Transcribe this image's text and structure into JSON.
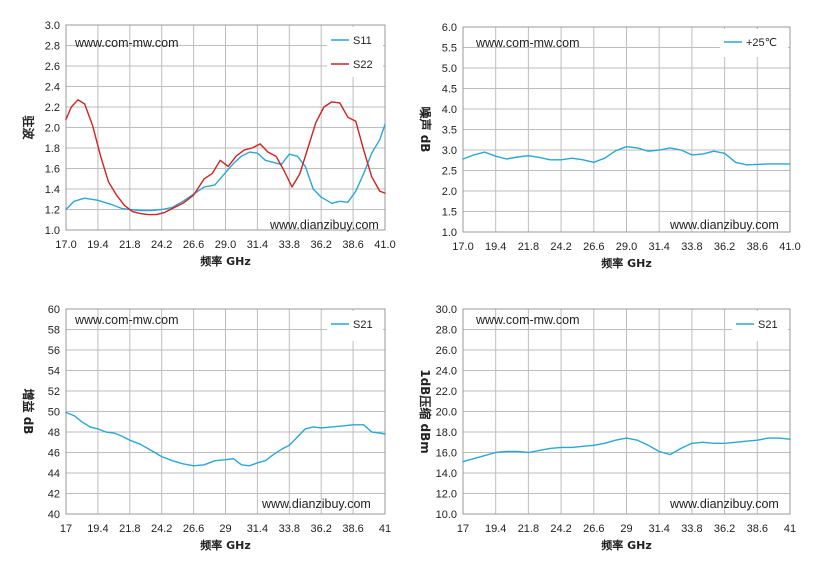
{
  "chart_data": [
    {
      "type": "line",
      "ylabel": "驻波",
      "xlabel": "频率 GHz",
      "xlim": [
        17.0,
        41.0
      ],
      "ylim": [
        1.0,
        3.0
      ],
      "xticks": [
        17.0,
        19.4,
        21.8,
        24.2,
        26.6,
        29.0,
        31.4,
        33.8,
        36.2,
        38.6,
        41.0
      ],
      "xtick_labels": [
        "17.0",
        "19.4",
        "21.8",
        "24.2",
        "26.6",
        "29.0",
        "31.4",
        "33.8",
        "36.2",
        "38.6",
        "41.0"
      ],
      "yticks": [
        1.0,
        1.2,
        1.4,
        1.6,
        1.8,
        2.0,
        2.2,
        2.4,
        2.6,
        2.8,
        3.0
      ],
      "ytick_labels": [
        "1.0",
        "1.2",
        "1.4",
        "1.6",
        "1.8",
        "2.0",
        "2.2",
        "2.4",
        "2.6",
        "2.8",
        "3.0"
      ],
      "grid": true,
      "legend_position": "top-right",
      "watermark_top": "www.com-mw.com",
      "watermark_bottom": "www.dianzibuy.com",
      "series": [
        {
          "name": "S11",
          "color": "#2aa7d6",
          "x": [
            17.0,
            17.6,
            18.4,
            19.4,
            20.4,
            21.2,
            21.8,
            22.6,
            23.4,
            24.2,
            25.0,
            25.8,
            26.6,
            27.4,
            28.2,
            29.0,
            29.6,
            30.2,
            30.8,
            31.4,
            32.0,
            32.6,
            33.2,
            33.8,
            34.4,
            35.0,
            35.6,
            36.2,
            37.0,
            37.6,
            38.2,
            38.8,
            39.4,
            40.0,
            40.6,
            41.0
          ],
          "y": [
            1.2,
            1.28,
            1.31,
            1.29,
            1.25,
            1.21,
            1.2,
            1.19,
            1.19,
            1.2,
            1.22,
            1.28,
            1.35,
            1.42,
            1.44,
            1.56,
            1.65,
            1.72,
            1.76,
            1.75,
            1.68,
            1.66,
            1.64,
            1.74,
            1.72,
            1.62,
            1.4,
            1.32,
            1.26,
            1.28,
            1.27,
            1.38,
            1.55,
            1.75,
            1.88,
            2.03
          ]
        },
        {
          "name": "S22",
          "color": "#d42020",
          "x": [
            17.0,
            17.4,
            17.9,
            18.4,
            19.0,
            19.6,
            20.2,
            20.8,
            21.4,
            22.0,
            22.6,
            23.2,
            23.8,
            24.4,
            25.0,
            25.8,
            26.6,
            27.4,
            28.0,
            28.6,
            29.2,
            29.8,
            30.4,
            31.0,
            31.6,
            32.2,
            32.8,
            33.4,
            34.0,
            34.6,
            35.2,
            35.8,
            36.4,
            37.0,
            37.6,
            38.2,
            38.8,
            39.4,
            40.0,
            40.6,
            41.0
          ],
          "y": [
            2.08,
            2.2,
            2.27,
            2.23,
            2.02,
            1.72,
            1.47,
            1.34,
            1.24,
            1.18,
            1.16,
            1.15,
            1.15,
            1.17,
            1.21,
            1.26,
            1.34,
            1.5,
            1.55,
            1.68,
            1.62,
            1.72,
            1.78,
            1.8,
            1.84,
            1.76,
            1.72,
            1.58,
            1.42,
            1.55,
            1.8,
            2.05,
            2.2,
            2.25,
            2.24,
            2.1,
            2.06,
            1.78,
            1.52,
            1.38,
            1.36
          ]
        }
      ]
    },
    {
      "type": "line",
      "ylabel": "噪声 dB",
      "xlabel": "频率 GHz",
      "xlim": [
        17.0,
        41.0
      ],
      "ylim": [
        1.0,
        6.0
      ],
      "xticks": [
        17.0,
        19.4,
        21.8,
        24.2,
        26.6,
        29.0,
        31.4,
        33.8,
        36.2,
        38.6,
        41.0
      ],
      "xtick_labels": [
        "17.0",
        "19.4",
        "21.8",
        "24.2",
        "26.6",
        "29.0",
        "31.4",
        "33.8",
        "36.2",
        "38.6",
        "41.0"
      ],
      "yticks": [
        1.0,
        1.5,
        2.0,
        2.5,
        3.0,
        3.5,
        4.0,
        4.5,
        5.0,
        5.5,
        6.0
      ],
      "ytick_labels": [
        "1.0",
        "1.5",
        "2.0",
        "2.5",
        "3.0",
        "3.5",
        "4.0",
        "4.5",
        "5.0",
        "5.5",
        "6.0"
      ],
      "grid": true,
      "legend_position": "top-right",
      "watermark_top": "www.com-mw.com",
      "watermark_bottom": "www.dianzibuy.com",
      "series": [
        {
          "name": "+25℃",
          "color": "#2aa7d6",
          "x": [
            17.0,
            17.8,
            18.6,
            19.4,
            20.2,
            21.0,
            21.8,
            22.6,
            23.4,
            24.2,
            25.0,
            25.8,
            26.6,
            27.4,
            28.2,
            29.0,
            29.8,
            30.6,
            31.4,
            32.2,
            33.0,
            33.8,
            34.6,
            35.4,
            36.2,
            37.0,
            37.8,
            38.6,
            39.4,
            40.2,
            41.0
          ],
          "y": [
            2.78,
            2.88,
            2.95,
            2.85,
            2.78,
            2.83,
            2.86,
            2.82,
            2.76,
            2.76,
            2.8,
            2.76,
            2.7,
            2.8,
            2.98,
            3.08,
            3.05,
            2.97,
            3.0,
            3.05,
            3.0,
            2.88,
            2.9,
            2.97,
            2.92,
            2.7,
            2.64,
            2.65,
            2.66,
            2.66,
            2.66
          ]
        }
      ]
    },
    {
      "type": "line",
      "ylabel": "增益 dB",
      "xlabel": "频率 GHz",
      "xlim": [
        17,
        41
      ],
      "ylim": [
        40,
        60
      ],
      "xticks": [
        17,
        19.4,
        21.8,
        24.2,
        26.6,
        29,
        31.4,
        33.8,
        36.2,
        38.6,
        41
      ],
      "xtick_labels": [
        "17",
        "19.4",
        "21.8",
        "24.2",
        "26.6",
        "29",
        "31.4",
        "33.8",
        "36.2",
        "38.6",
        "41"
      ],
      "yticks": [
        40,
        42,
        44,
        46,
        48,
        50,
        52,
        54,
        56,
        58,
        60
      ],
      "ytick_labels": [
        "40",
        "42",
        "44",
        "46",
        "48",
        "50",
        "52",
        "54",
        "56",
        "58",
        "60"
      ],
      "grid": true,
      "legend_position": "top-right",
      "watermark_top": "www.com-mw.com",
      "watermark_bottom": "www.dianzibuy.com",
      "series": [
        {
          "name": "S21",
          "color": "#2aa7d6",
          "x": [
            17.0,
            17.6,
            18.2,
            18.8,
            19.4,
            20.0,
            20.6,
            21.2,
            21.8,
            22.6,
            23.4,
            24.2,
            25.0,
            25.8,
            26.6,
            27.4,
            28.2,
            29.0,
            29.6,
            30.2,
            30.8,
            31.4,
            32.0,
            32.6,
            33.2,
            33.8,
            34.4,
            35.0,
            35.6,
            36.2,
            37.0,
            37.8,
            38.6,
            39.4,
            40.0,
            40.6,
            41.0
          ],
          "y": [
            49.9,
            49.6,
            49.0,
            48.5,
            48.3,
            48.0,
            47.9,
            47.6,
            47.2,
            46.8,
            46.2,
            45.6,
            45.2,
            44.9,
            44.7,
            44.8,
            45.2,
            45.3,
            45.4,
            44.8,
            44.7,
            45.0,
            45.2,
            45.8,
            46.3,
            46.7,
            47.5,
            48.3,
            48.5,
            48.4,
            48.5,
            48.6,
            48.7,
            48.7,
            48.0,
            47.9,
            47.8
          ]
        }
      ]
    },
    {
      "type": "line",
      "ylabel": "1dB压缩 dBm",
      "xlabel": "频率 GHz",
      "xlim": [
        17,
        41
      ],
      "ylim": [
        10.0,
        30.0
      ],
      "xticks": [
        17,
        19.4,
        21.8,
        24.2,
        26.6,
        29,
        31.4,
        33.8,
        36.2,
        38.6,
        41
      ],
      "xtick_labels": [
        "17",
        "19.4",
        "21.8",
        "24.2",
        "26.6",
        "29",
        "31.4",
        "33.8",
        "36.2",
        "38.6",
        "41"
      ],
      "yticks": [
        10,
        12,
        14,
        16,
        18,
        20,
        22,
        24,
        26,
        28,
        30
      ],
      "ytick_labels": [
        "10.0",
        "12.0",
        "14.0",
        "16.0",
        "18.0",
        "20.0",
        "22.0",
        "24.0",
        "26.0",
        "28.0",
        "30.0"
      ],
      "grid": true,
      "legend_position": "top-right",
      "watermark_top": "www.com-mw.com",
      "watermark_bottom": "www.dianzibuy.com",
      "series": [
        {
          "name": "S21",
          "color": "#2aa7d6",
          "x": [
            17.0,
            17.8,
            18.6,
            19.4,
            20.2,
            21.0,
            21.8,
            22.6,
            23.4,
            24.2,
            25.0,
            25.8,
            26.6,
            27.4,
            28.2,
            29.0,
            29.8,
            30.6,
            31.4,
            32.2,
            33.0,
            33.8,
            34.6,
            35.4,
            36.2,
            37.0,
            37.8,
            38.6,
            39.4,
            40.2,
            41.0
          ],
          "y": [
            15.1,
            15.4,
            15.7,
            16.0,
            16.1,
            16.1,
            16.0,
            16.2,
            16.4,
            16.5,
            16.5,
            16.6,
            16.7,
            16.9,
            17.2,
            17.4,
            17.2,
            16.7,
            16.1,
            15.8,
            16.4,
            16.9,
            17.0,
            16.9,
            16.9,
            17.0,
            17.1,
            17.2,
            17.4,
            17.4,
            17.3
          ]
        }
      ]
    }
  ]
}
